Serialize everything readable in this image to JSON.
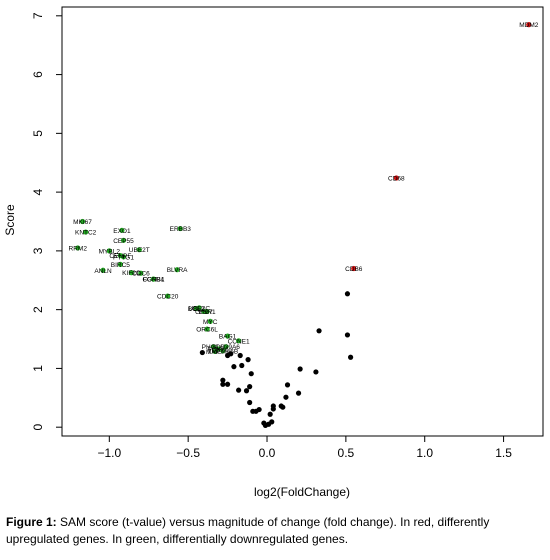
{
  "chart_data": {
    "type": "scatter",
    "xlabel": "log2(FoldChange)",
    "ylabel": "Score",
    "xlim": [
      -1.3,
      1.75
    ],
    "ylim": [
      -0.15,
      7.15
    ],
    "x_ticks": [
      -1.0,
      -0.5,
      0.0,
      0.5,
      1.0,
      1.5
    ],
    "x_tick_labels": [
      "−1.0",
      "−0.5",
      "0.0",
      "0.5",
      "1.0",
      "1.5"
    ],
    "y_ticks": [
      0,
      1,
      2,
      3,
      4,
      5,
      6,
      7
    ],
    "y_tick_labels": [
      "0",
      "1",
      "2",
      "3",
      "4",
      "5",
      "6",
      "7"
    ],
    "grid": false,
    "colors": {
      "up": "#cc1111",
      "down": "#22aa22",
      "other": "#000000"
    },
    "series": [
      {
        "name": "upregulated",
        "color": "#cc1111",
        "points": [
          {
            "label": "MDM2",
            "x": 1.66,
            "y": 6.85
          },
          {
            "label": "CD68",
            "x": 0.82,
            "y": 4.24
          },
          {
            "label": "CDB6",
            "x": 0.55,
            "y": 2.7
          }
        ]
      },
      {
        "name": "downregulated",
        "color": "#22aa22",
        "points": [
          {
            "label": "MKI67",
            "x": -1.17,
            "y": 3.5
          },
          {
            "label": "KNTC2",
            "x": -1.15,
            "y": 3.32
          },
          {
            "label": "EXO1",
            "x": -0.92,
            "y": 3.35
          },
          {
            "label": "ERBB3",
            "x": -0.55,
            "y": 3.38
          },
          {
            "label": "CEP55",
            "x": -0.91,
            "y": 3.18
          },
          {
            "label": "RRM2",
            "x": -1.2,
            "y": 3.05
          },
          {
            "label": "MYBL2",
            "x": -1.0,
            "y": 3.0
          },
          {
            "label": "UBE2T",
            "x": -0.81,
            "y": 3.02
          },
          {
            "label": "CENPF",
            "x": -0.93,
            "y": 2.92
          },
          {
            "label": "PTTG1",
            "x": -0.91,
            "y": 2.9
          },
          {
            "label": "BIRC5",
            "x": -0.93,
            "y": 2.77
          },
          {
            "label": "ANLN",
            "x": -1.04,
            "y": 2.67
          },
          {
            "label": "CDC6",
            "x": -0.8,
            "y": 2.62
          },
          {
            "label": "CCNB1",
            "x": -0.72,
            "y": 2.52
          },
          {
            "label": "CDC20",
            "x": -0.63,
            "y": 2.23
          },
          {
            "label": "BCL2",
            "x": -0.45,
            "y": 2.02
          },
          {
            "label": "UBE2C",
            "x": -0.43,
            "y": 2.03
          },
          {
            "label": "ESR1",
            "x": -0.38,
            "y": 1.97
          },
          {
            "label": "GRB7",
            "x": -0.4,
            "y": 1.97
          },
          {
            "label": "MYC",
            "x": -0.36,
            "y": 1.8
          },
          {
            "label": "ORC6L",
            "x": -0.38,
            "y": 1.67
          },
          {
            "label": "BAG1",
            "x": -0.25,
            "y": 1.55
          },
          {
            "label": "CCNE1",
            "x": -0.18,
            "y": 1.47
          },
          {
            "label": "PHGDH",
            "x": -0.34,
            "y": 1.37
          },
          {
            "label": "SLC39A6",
            "x": -0.26,
            "y": 1.37
          },
          {
            "label": "FOXA1",
            "x": -0.31,
            "y": 1.33
          },
          {
            "label": "TMEM45B",
            "x": -0.28,
            "y": 1.3
          },
          {
            "label": "KIF2C",
            "x": -0.86,
            "y": 2.63
          },
          {
            "label": "FGFR4",
            "x": -0.72,
            "y": 2.52
          },
          {
            "label": "BLVRA",
            "x": -0.57,
            "y": 2.68
          },
          {
            "label": "MAPT",
            "x": -0.33,
            "y": 1.29
          }
        ]
      },
      {
        "name": "other",
        "color": "#000000",
        "points": [
          {
            "x": 0.51,
            "y": 2.27
          },
          {
            "x": 0.33,
            "y": 1.64
          },
          {
            "x": 0.51,
            "y": 1.57
          },
          {
            "x": 0.53,
            "y": 1.19
          },
          {
            "x": 0.21,
            "y": 0.99
          },
          {
            "x": 0.31,
            "y": 0.94
          },
          {
            "x": 0.13,
            "y": 0.72
          },
          {
            "x": 0.2,
            "y": 0.58
          },
          {
            "x": 0.12,
            "y": 0.51
          },
          {
            "x": 0.09,
            "y": 0.36
          },
          {
            "x": 0.1,
            "y": 0.34
          },
          {
            "x": 0.04,
            "y": 0.36
          },
          {
            "x": 0.04,
            "y": 0.31
          },
          {
            "x": 0.02,
            "y": 0.22
          },
          {
            "x": 0.03,
            "y": 0.09
          },
          {
            "x": 0.01,
            "y": 0.05
          },
          {
            "x": -0.02,
            "y": 0.07
          },
          {
            "x": -0.01,
            "y": 0.03
          },
          {
            "x": -0.07,
            "y": 0.27
          },
          {
            "x": -0.05,
            "y": 0.3
          },
          {
            "x": -0.09,
            "y": 0.27
          },
          {
            "x": -0.11,
            "y": 0.42
          },
          {
            "x": -0.13,
            "y": 0.62
          },
          {
            "x": -0.11,
            "y": 0.69
          },
          {
            "x": -0.1,
            "y": 0.91
          },
          {
            "x": -0.18,
            "y": 0.63
          },
          {
            "x": -0.25,
            "y": 0.73
          },
          {
            "x": -0.28,
            "y": 0.8
          },
          {
            "x": -0.28,
            "y": 0.73
          },
          {
            "x": -0.16,
            "y": 1.05
          },
          {
            "x": -0.12,
            "y": 1.15
          },
          {
            "x": -0.21,
            "y": 1.03
          },
          {
            "x": -0.23,
            "y": 1.25
          },
          {
            "x": -0.17,
            "y": 1.22
          },
          {
            "x": -0.25,
            "y": 1.22
          },
          {
            "x": -0.41,
            "y": 1.27
          }
        ]
      }
    ]
  },
  "caption": {
    "label": "Figure 1:",
    "text": " SAM score (t-value) versus magnitude of change (fold change). In red, differently upregulated genes. In green, differentially downregulated genes."
  }
}
